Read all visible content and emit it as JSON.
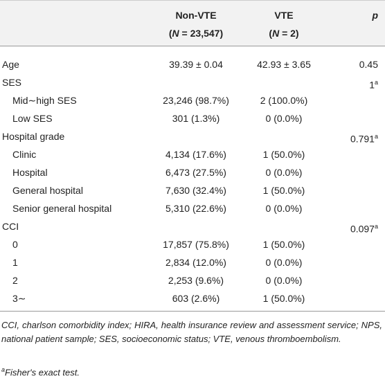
{
  "header": {
    "columns": [
      {
        "title": "Non-VTE",
        "n_open": "(",
        "n_var": "N",
        "n_rest": " = 23,547)"
      },
      {
        "title": "VTE",
        "n_open": "(",
        "n_var": "N",
        "n_rest": " = 2)"
      },
      {
        "title": "p"
      }
    ]
  },
  "table": {
    "rows": [
      {
        "label": "Age",
        "non_vte": "39.39 ± 0.04",
        "vte": "42.93 ± 3.65",
        "p": "0.45"
      },
      {
        "label": "SES",
        "p": "1",
        "p_note": "a",
        "sub": [
          {
            "label": "Mid∼high SES",
            "non_vte": "23,246 (98.7%)",
            "vte": "2 (100.0%)"
          },
          {
            "label": "Low SES",
            "non_vte": "301 (1.3%)",
            "vte": "0 (0.0%)"
          }
        ]
      },
      {
        "label": "Hospital grade",
        "p": "0.791",
        "p_note": "a",
        "sub": [
          {
            "label": "Clinic",
            "non_vte": "4,134 (17.6%)",
            "vte": "1 (50.0%)"
          },
          {
            "label": "Hospital",
            "non_vte": "6,473 (27.5%)",
            "vte": "0 (0.0%)"
          },
          {
            "label": "General hospital",
            "non_vte": "7,630 (32.4%)",
            "vte": "1 (50.0%)"
          },
          {
            "label": "Senior general hospital",
            "non_vte": "5,310 (22.6%)",
            "vte": "0 (0.0%)"
          }
        ]
      },
      {
        "label": "CCI",
        "p": "0.097",
        "p_note": "a",
        "sub": [
          {
            "label": "0",
            "non_vte": "17,857 (75.8%)",
            "vte": "1 (50.0%)"
          },
          {
            "label": "1",
            "non_vte": "2,834 (12.0%)",
            "vte": "0 (0.0%)"
          },
          {
            "label": "2",
            "non_vte": "2,253 (9.6%)",
            "vte": "0 (0.0%)"
          },
          {
            "label": "3∼",
            "non_vte": "603 (2.6%)",
            "vte": "1 (50.0%)"
          }
        ]
      }
    ]
  },
  "footnotes": {
    "abbreviations": "CCI, charlson comorbidity index; HIRA, health insurance review and assessment service; NPS, national patient sample; SES, socioeconomic status; VTE, venous thromboembolism.",
    "note_mark": "a",
    "note_text": "Fisher's exact test."
  }
}
